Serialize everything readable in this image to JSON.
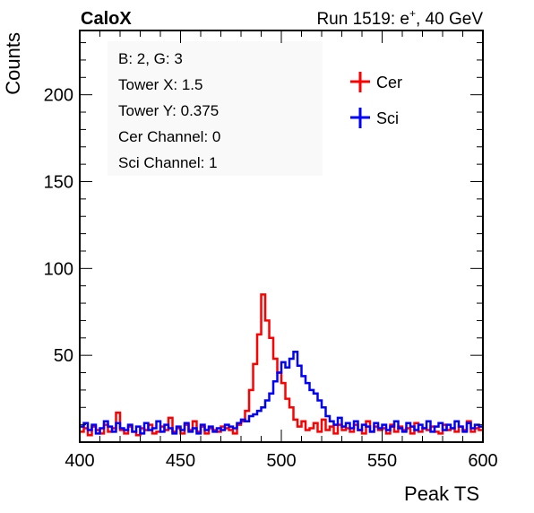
{
  "header": {
    "experiment": "CaloX",
    "run_info_prefix": "Run 1519: e",
    "run_info_sup": "+",
    "run_info_suffix": ", 40 GeV"
  },
  "info_box": {
    "lines": [
      "B: 2, G: 3",
      "Tower X: 1.5",
      "Tower Y: 0.375",
      "Cer Channel: 0",
      "Sci Channel: 1"
    ]
  },
  "colors": {
    "cer": "#ff0000",
    "sci": "#0000ff"
  },
  "chart_data": {
    "type": "line",
    "step": true,
    "xlabel": "Peak TS",
    "ylabel": "Counts",
    "xlim": [
      400,
      600
    ],
    "ylim": [
      0,
      237
    ],
    "x_ticks": [
      400,
      450,
      500,
      550,
      600
    ],
    "y_ticks": [
      50,
      100,
      150,
      200
    ],
    "grid": false,
    "legend": "top-right",
    "bin_width": 2,
    "x": [
      400,
      402,
      404,
      406,
      408,
      410,
      412,
      414,
      416,
      418,
      420,
      422,
      424,
      426,
      428,
      430,
      432,
      434,
      436,
      438,
      440,
      442,
      444,
      446,
      448,
      450,
      452,
      454,
      456,
      458,
      460,
      462,
      464,
      466,
      468,
      470,
      472,
      474,
      476,
      478,
      480,
      482,
      484,
      486,
      488,
      490,
      492,
      494,
      496,
      498,
      500,
      502,
      504,
      506,
      508,
      510,
      512,
      514,
      516,
      518,
      520,
      522,
      524,
      526,
      528,
      530,
      532,
      534,
      536,
      538,
      540,
      542,
      544,
      546,
      548,
      550,
      552,
      554,
      556,
      558,
      560,
      562,
      564,
      566,
      568,
      570,
      572,
      574,
      576,
      578,
      580,
      582,
      584,
      586,
      588,
      590,
      592,
      594,
      596,
      598
    ],
    "series": [
      {
        "name": "Cer",
        "values": [
          6,
          8,
          4,
          9,
          7,
          5,
          10,
          6,
          8,
          17,
          7,
          5,
          9,
          6,
          4,
          8,
          7,
          10,
          5,
          6,
          9,
          7,
          14,
          6,
          8,
          5,
          10,
          7,
          12,
          6,
          9,
          5,
          8,
          7,
          6,
          9,
          8,
          7,
          5,
          10,
          12,
          18,
          30,
          45,
          62,
          85,
          70,
          60,
          48,
          40,
          34,
          25,
          20,
          13,
          9,
          12,
          7,
          8,
          11,
          6,
          13,
          7,
          9,
          5,
          10,
          7,
          8,
          6,
          10,
          7,
          5,
          12,
          6,
          9,
          7,
          8,
          5,
          10,
          6,
          9,
          7,
          8,
          5,
          11,
          6,
          8,
          7,
          9,
          6,
          5,
          10,
          7,
          8,
          6,
          9,
          7,
          12,
          6,
          8,
          7
        ]
      },
      {
        "name": "Sci",
        "values": [
          9,
          11,
          7,
          10,
          5,
          8,
          12,
          9,
          6,
          11,
          8,
          7,
          10,
          6,
          9,
          5,
          11,
          7,
          8,
          12,
          6,
          10,
          8,
          5,
          9,
          7,
          11,
          6,
          8,
          5,
          10,
          7,
          9,
          6,
          8,
          7,
          10,
          9,
          8,
          11,
          13,
          12,
          15,
          16,
          18,
          20,
          24,
          28,
          35,
          40,
          46,
          43,
          48,
          52,
          44,
          38,
          34,
          30,
          28,
          24,
          20,
          15,
          12,
          10,
          14,
          9,
          11,
          8,
          12,
          7,
          10,
          9,
          6,
          11,
          8,
          10,
          7,
          9,
          12,
          8,
          6,
          11,
          9,
          7,
          10,
          8,
          12,
          6,
          9,
          11,
          7,
          10,
          8,
          12,
          9,
          6,
          11,
          8,
          10,
          9
        ]
      }
    ]
  }
}
